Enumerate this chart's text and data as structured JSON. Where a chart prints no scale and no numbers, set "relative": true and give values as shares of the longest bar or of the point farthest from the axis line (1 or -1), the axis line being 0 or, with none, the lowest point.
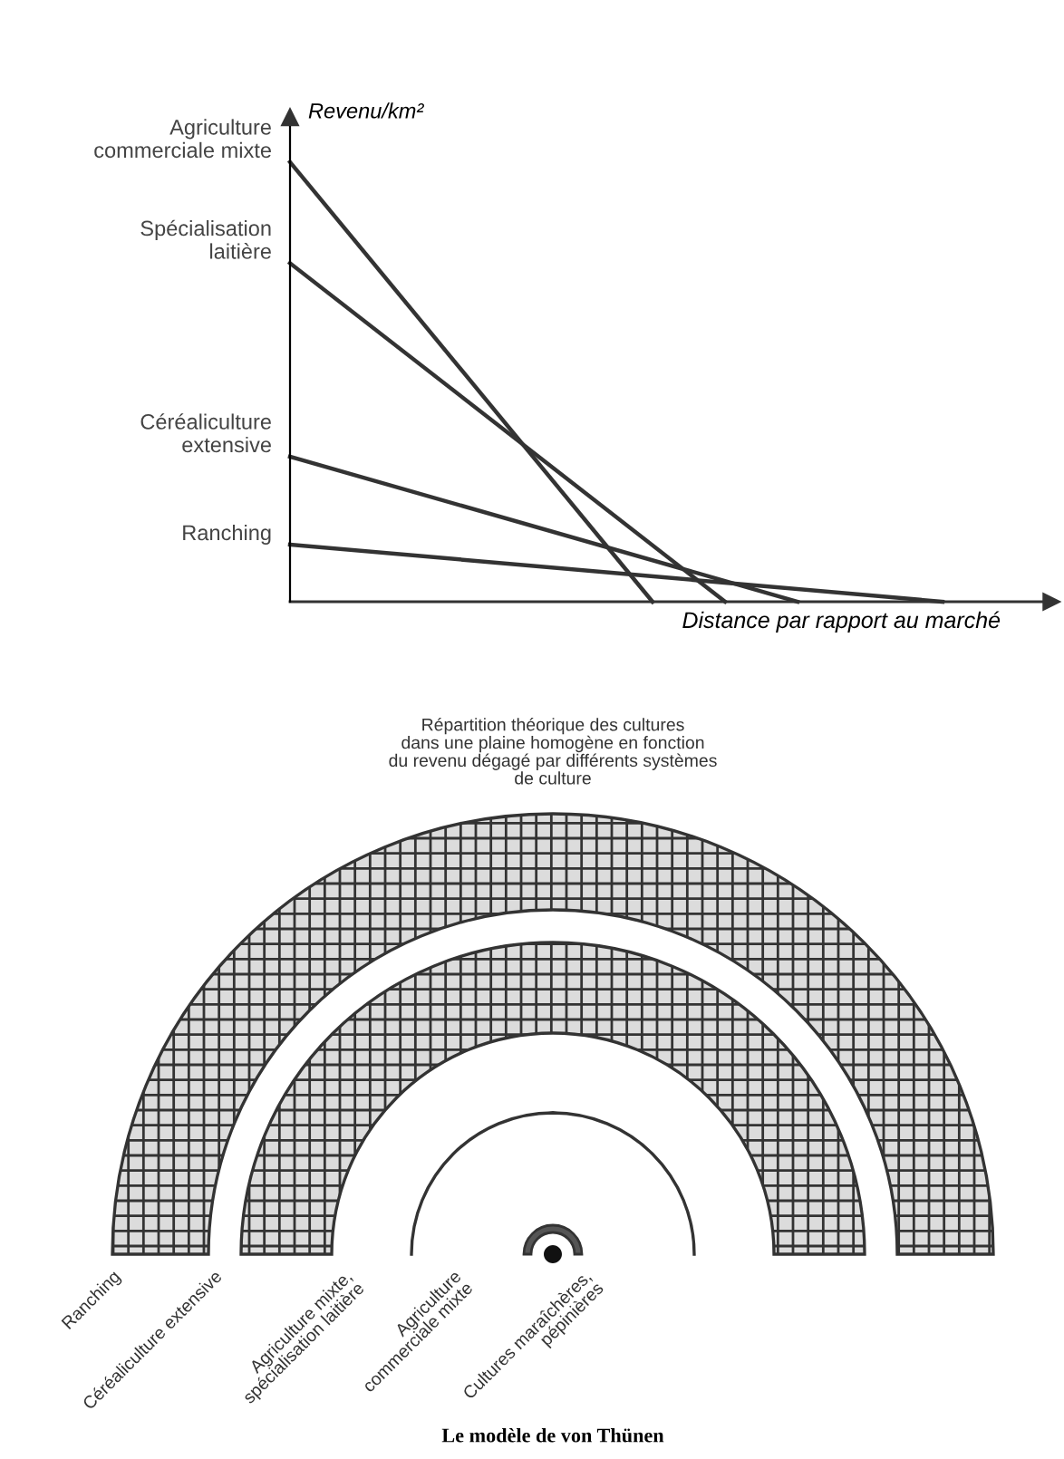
{
  "chart_data": [
    {
      "type": "line",
      "relative": true,
      "xlabel": "Distance par rapport au marché",
      "ylabel": "Revenu/km²",
      "categories": [
        null,
        null,
        null,
        null,
        null,
        null,
        null,
        null,
        null,
        null,
        null
      ],
      "marker": "none",
      "line_style": "solid",
      "series": [
        {
          "name": "Agriculture\ncommerciale mixte",
          "color": "#333333",
          "values": [
            1,
            null,
            null,
            null,
            null,
            0,
            null,
            null,
            null,
            null,
            null
          ]
        },
        {
          "name": "Spécialisation\nlaitière",
          "color": "#333333",
          "values": [
            0.77,
            null,
            null,
            null,
            null,
            null,
            0,
            null,
            null,
            null,
            null
          ]
        },
        {
          "name": "Céréaliculture\nextensive",
          "color": "#333333",
          "values": [
            0.33,
            null,
            null,
            null,
            null,
            null,
            null,
            0,
            null,
            null,
            null
          ]
        },
        {
          "name": "Ranching",
          "color": "#333333",
          "values": [
            0.13,
            null,
            null,
            null,
            null,
            null,
            null,
            null,
            null,
            0,
            null
          ]
        }
      ]
    },
    {
      "type": "other",
      "title": "Répartition théorique des cultures\ndans une plaine homogène en fonction\ndu revenu dégagé par différents systèmes\nde culture",
      "annotations": [
        "Ranching",
        "Céréaliculture extensive",
        "Agriculture mixte,\nspécialisation laitière",
        "Agriculture\ncommerciale mixte",
        "Cultures maraîchères,\npépinières",
        "Le modèle de von Thünen"
      ]
    }
  ]
}
